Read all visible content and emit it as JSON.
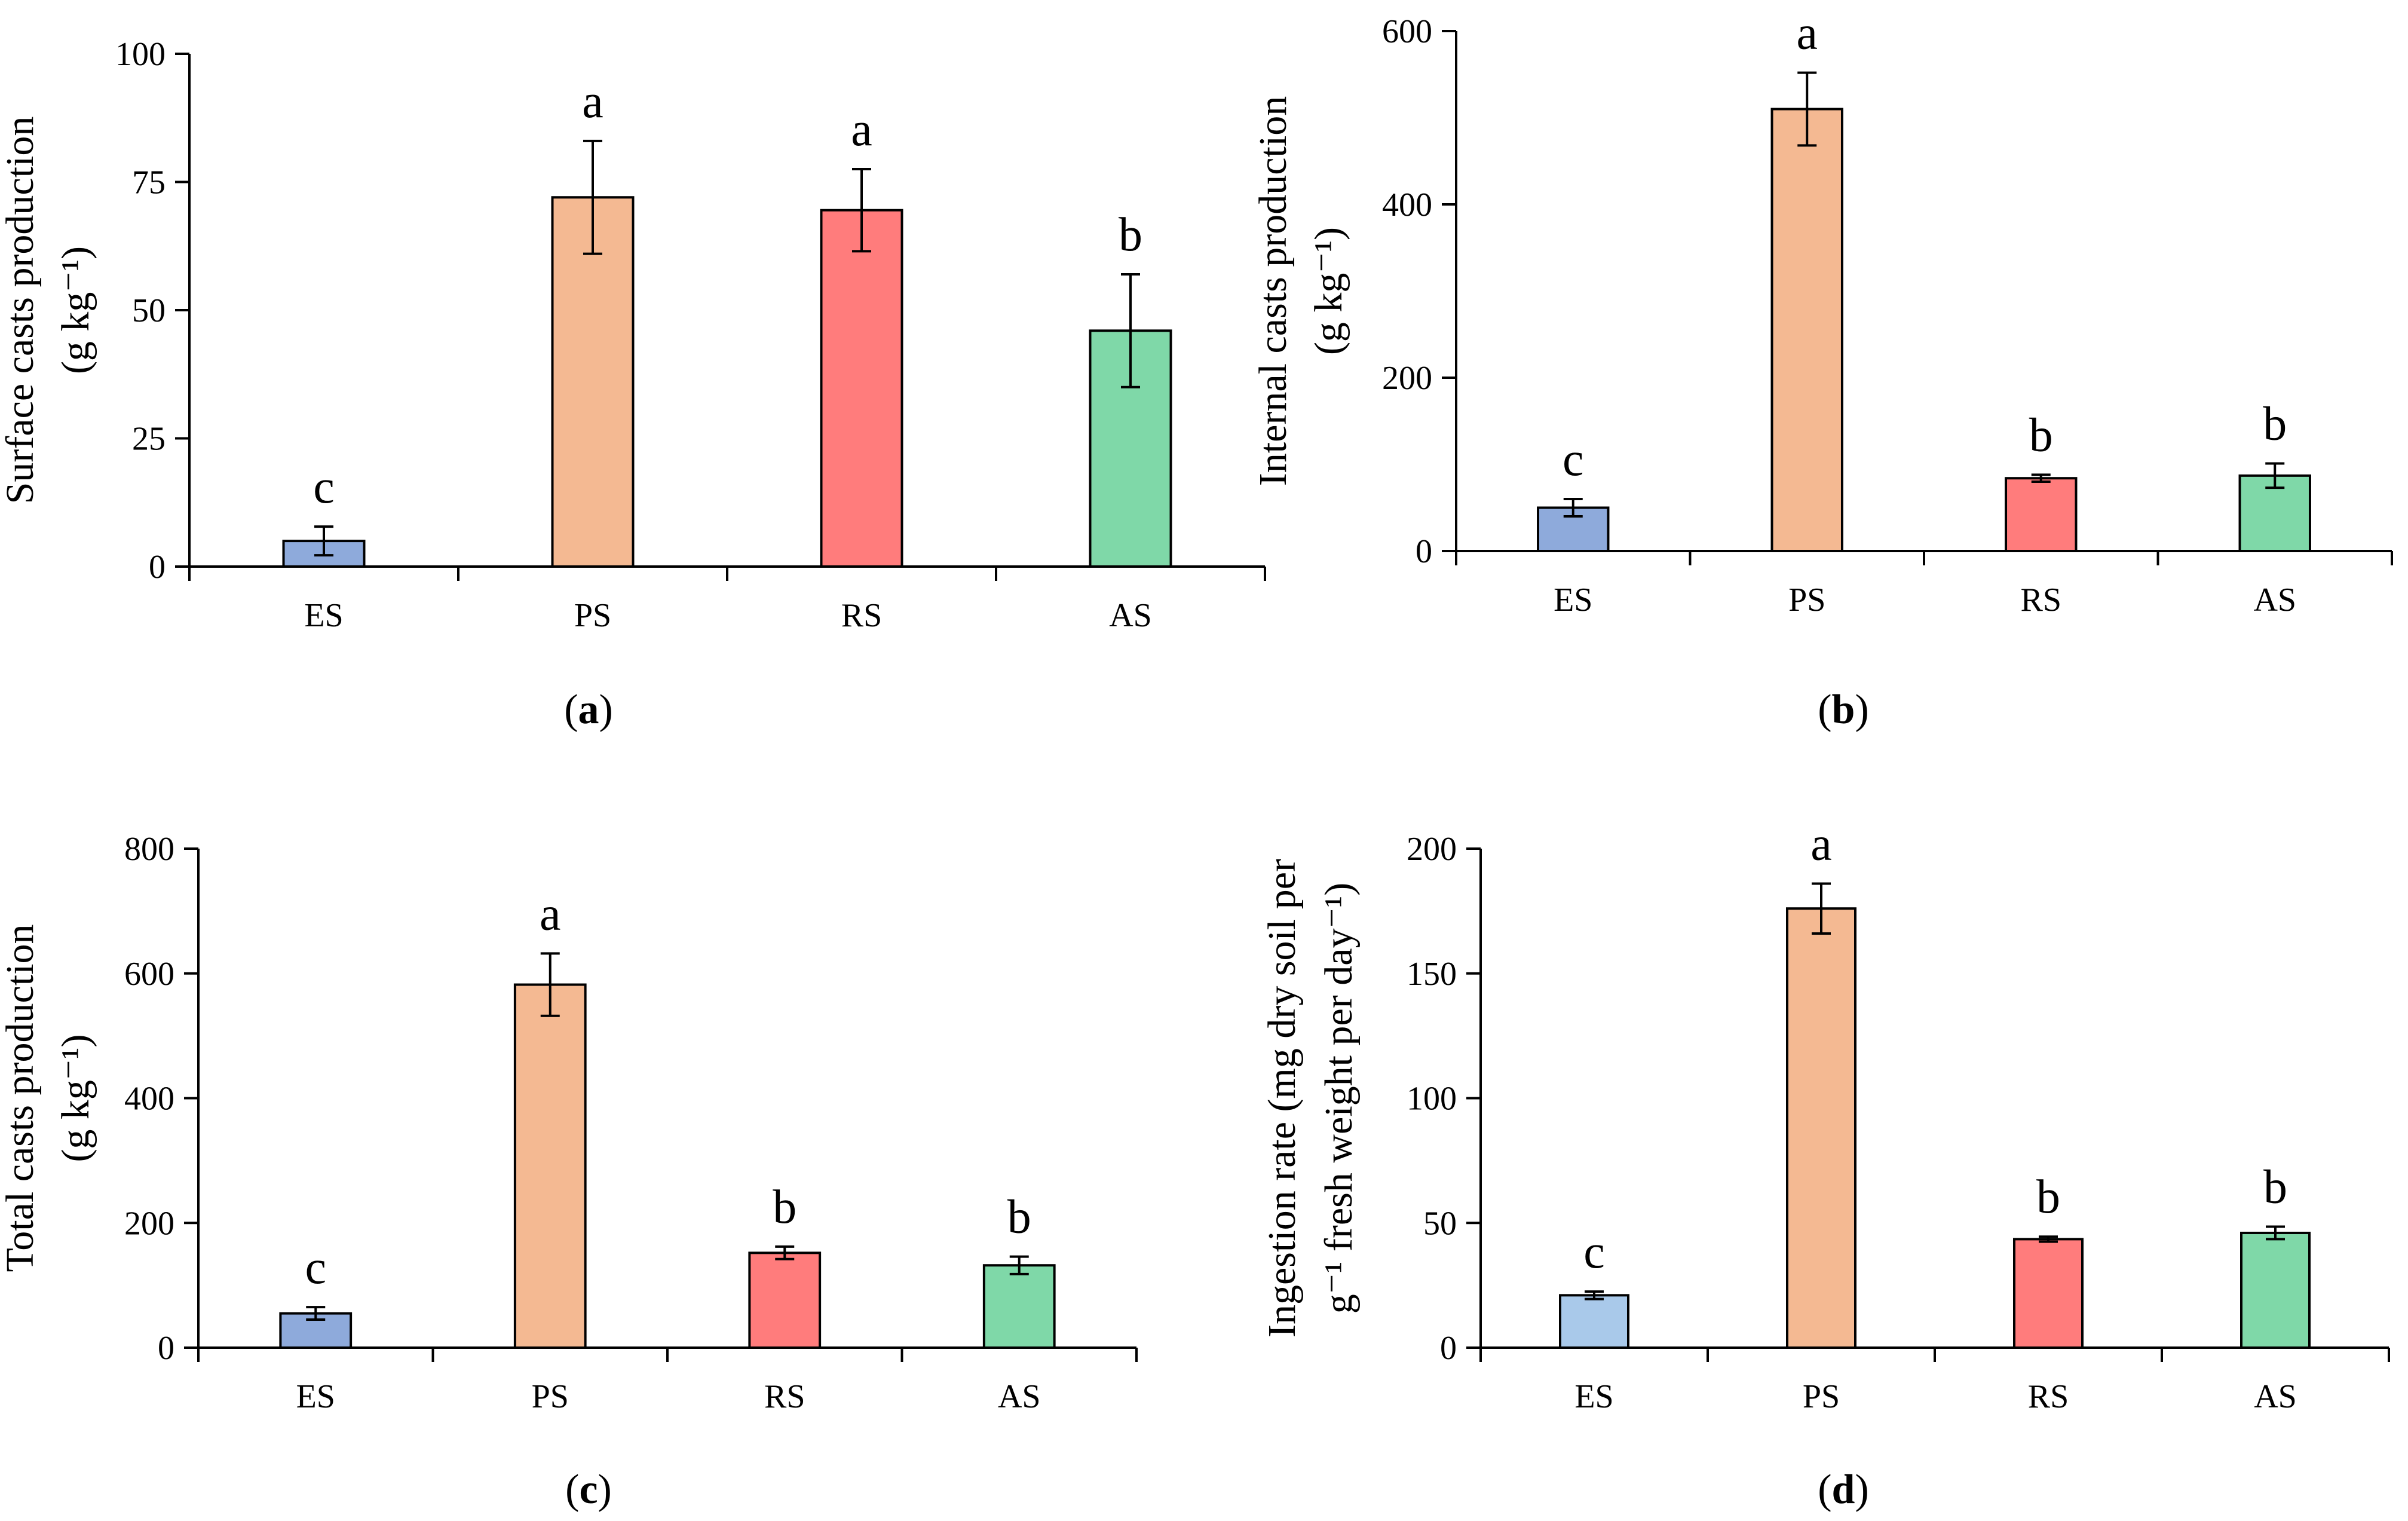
{
  "colors": {
    "ES": "#8eaadb",
    "ES_d": "#a9c9ea",
    "PS": "#f4b992",
    "RS": "#ff7c7c",
    "AS": "#7fd8a8",
    "line": "#000000"
  },
  "chart_data": [
    {
      "type": "bar",
      "panel": "a",
      "panel_label": "(a)",
      "ylabel_lines": [
        "Surface casts production",
        "(g kg⁻¹)"
      ],
      "categories": [
        "ES",
        "PS",
        "RS",
        "AS"
      ],
      "values": [
        5,
        72,
        69.5,
        46
      ],
      "errors": [
        2.8,
        11,
        8,
        11
      ],
      "letters": [
        "c",
        "a",
        "a",
        "b"
      ],
      "ylim": [
        0,
        100
      ],
      "yticks": [
        0,
        25,
        50,
        75,
        100
      ],
      "bar_colors": [
        "ES",
        "PS",
        "RS",
        "AS"
      ]
    },
    {
      "type": "bar",
      "panel": "b",
      "panel_label": "(b)",
      "ylabel_lines": [
        "Internal casts production",
        "(g kg⁻¹)"
      ],
      "categories": [
        "ES",
        "PS",
        "RS",
        "AS"
      ],
      "values": [
        50,
        510,
        84,
        87
      ],
      "errors": [
        10,
        42,
        4,
        14
      ],
      "letters": [
        "c",
        "a",
        "b",
        "b"
      ],
      "ylim": [
        0,
        600
      ],
      "yticks": [
        0,
        200,
        400,
        600
      ],
      "bar_colors": [
        "ES",
        "PS",
        "RS",
        "AS"
      ]
    },
    {
      "type": "bar",
      "panel": "c",
      "panel_label": "(c)",
      "ylabel_lines": [
        "Total casts production",
        "(g kg⁻¹)"
      ],
      "categories": [
        "ES",
        "PS",
        "RS",
        "AS"
      ],
      "values": [
        55,
        582,
        152,
        132
      ],
      "errors": [
        10,
        50,
        10,
        14
      ],
      "letters": [
        "c",
        "a",
        "b",
        "b"
      ],
      "ylim": [
        0,
        800
      ],
      "yticks": [
        0,
        200,
        400,
        600,
        800
      ],
      "bar_colors": [
        "ES",
        "PS",
        "RS",
        "AS"
      ]
    },
    {
      "type": "bar",
      "panel": "d",
      "panel_label": "(d)",
      "ylabel_lines": [
        "Ingestion rate (mg dry soil per",
        "g⁻¹ fresh weight per day⁻¹)"
      ],
      "categories": [
        "ES",
        "PS",
        "RS",
        "AS"
      ],
      "values": [
        21,
        176,
        43.5,
        46
      ],
      "errors": [
        1.5,
        10,
        1,
        2.5
      ],
      "letters": [
        "c",
        "a",
        "b",
        "b"
      ],
      "ylim": [
        0,
        200
      ],
      "yticks": [
        0,
        50,
        100,
        150,
        200
      ],
      "bar_colors": [
        "ES_d",
        "PS",
        "RS",
        "AS"
      ]
    }
  ]
}
